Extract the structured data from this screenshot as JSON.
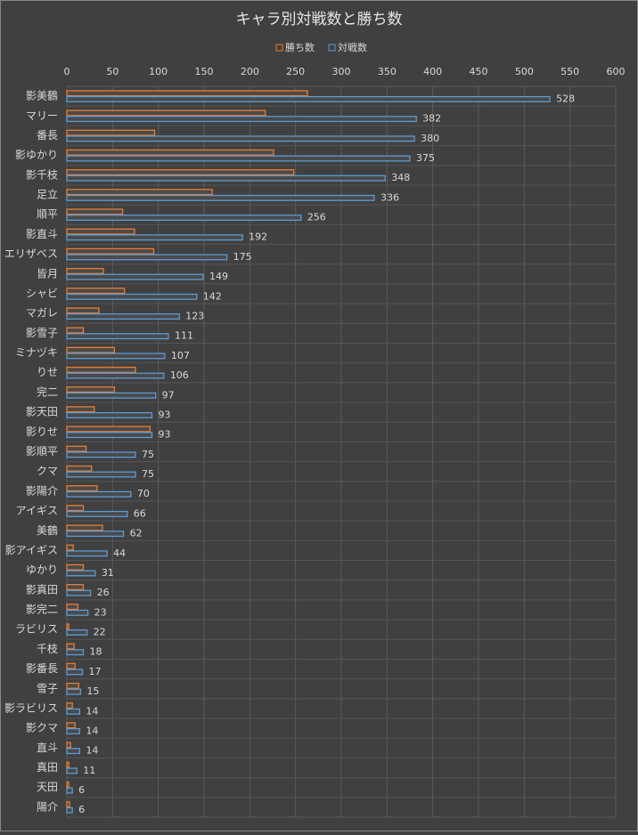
{
  "chart_data": {
    "type": "hbar",
    "title": "キャラ別対戦数と勝ち数",
    "categories": [
      "影美鶴",
      "マリー",
      "番長",
      "影ゆかり",
      "影千枝",
      "足立",
      "順平",
      "影直斗",
      "エリザベス",
      "皆月",
      "シャビ",
      "マガレ",
      "影雪子",
      "ミナヅキ",
      "りせ",
      "完二",
      "影天田",
      "影りせ",
      "影順平",
      "クマ",
      "影陽介",
      "アイギス",
      "美鶴",
      "影アイギス",
      "ゆかり",
      "影真田",
      "影完二",
      "ラビリス",
      "千枝",
      "影番長",
      "雪子",
      "影ラビリス",
      "影クマ",
      "直斗",
      "真田",
      "天田",
      "陽介"
    ],
    "series": [
      {
        "name": "勝ち数",
        "color": "#ed7d31",
        "values": [
          263,
          217,
          96,
          226,
          248,
          159,
          61,
          74,
          95,
          40,
          63,
          35,
          18,
          52,
          75,
          52,
          30,
          91,
          21,
          27,
          33,
          18,
          39,
          7,
          18,
          18,
          12,
          2,
          8,
          9,
          13,
          6,
          9,
          4,
          2,
          2,
          3
        ]
      },
      {
        "name": "対戦数",
        "color": "#5b9bd5",
        "values": [
          528,
          382,
          380,
          375,
          348,
          336,
          256,
          192,
          175,
          149,
          142,
          123,
          111,
          107,
          106,
          97,
          93,
          93,
          75,
          75,
          70,
          66,
          62,
          44,
          31,
          26,
          23,
          22,
          18,
          17,
          15,
          14,
          14,
          14,
          11,
          6,
          6
        ],
        "show_labels": true
      }
    ],
    "xlim": [
      0,
      600
    ],
    "xticks": [
      0,
      50,
      100,
      150,
      200,
      250,
      300,
      350,
      400,
      450,
      500,
      550,
      600
    ],
    "grid": true,
    "legend": "top"
  }
}
